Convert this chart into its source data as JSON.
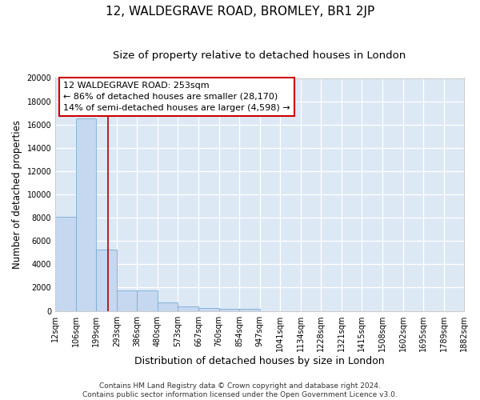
{
  "title": "12, WALDEGRAVE ROAD, BROMLEY, BR1 2JP",
  "subtitle": "Size of property relative to detached houses in London",
  "xlabel": "Distribution of detached houses by size in London",
  "ylabel": "Number of detached properties",
  "bin_edges": [
    12,
    106,
    199,
    293,
    386,
    480,
    573,
    667,
    760,
    854,
    947,
    1041,
    1134,
    1228,
    1321,
    1415,
    1508,
    1602,
    1695,
    1789,
    1882
  ],
  "bar_heights": [
    8050,
    16550,
    5250,
    1750,
    1750,
    750,
    350,
    250,
    200,
    200,
    0,
    0,
    0,
    0,
    0,
    0,
    0,
    0,
    0,
    0
  ],
  "bar_color": "#c5d8ef",
  "bar_edge_color": "#7aadd4",
  "background_color": "#dde8f5",
  "fig_background_color": "#ffffff",
  "property_line_x": 253,
  "property_line_color": "#aa0000",
  "annotation_text": "12 WALDEGRAVE ROAD: 253sqm\n← 86% of detached houses are smaller (28,170)\n14% of semi-detached houses are larger (4,598) →",
  "annotation_box_facecolor": "#ffffff",
  "annotation_box_edgecolor": "#cc0000",
  "ylim": [
    0,
    20000
  ],
  "yticks": [
    0,
    2000,
    4000,
    6000,
    8000,
    10000,
    12000,
    14000,
    16000,
    18000,
    20000
  ],
  "footnote": "Contains HM Land Registry data © Crown copyright and database right 2024.\nContains public sector information licensed under the Open Government Licence v3.0.",
  "title_fontsize": 11,
  "subtitle_fontsize": 9.5,
  "annotation_fontsize": 8,
  "tick_label_fontsize": 7,
  "ylabel_fontsize": 8.5,
  "xlabel_fontsize": 9,
  "footnote_fontsize": 6.5
}
